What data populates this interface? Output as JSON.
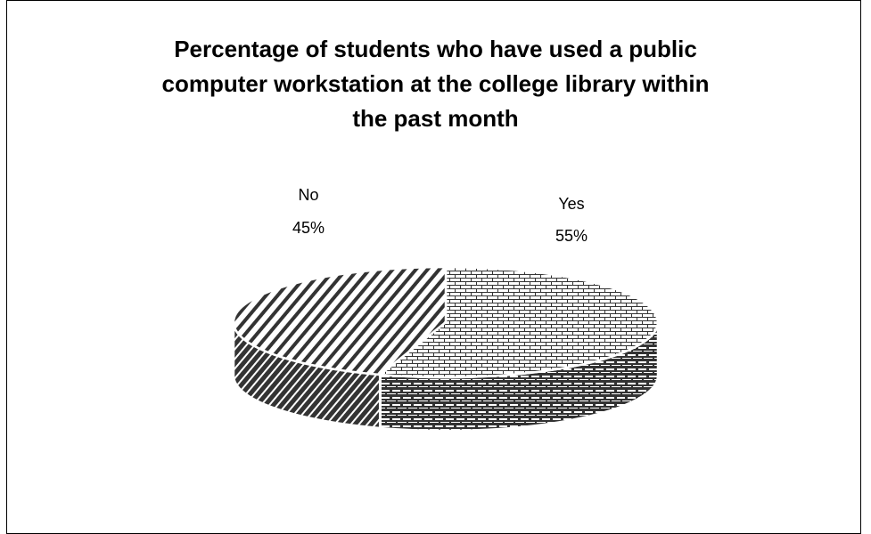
{
  "chart_data": {
    "type": "pie",
    "title_lines": [
      "Percentage of students who have used a public",
      "computer workstation at the college library within",
      "the past month"
    ],
    "slices": [
      {
        "name": "Yes",
        "value": 55,
        "label": "55%",
        "pattern": "brick"
      },
      {
        "name": "No",
        "value": 45,
        "label": "45%",
        "pattern": "diagonal"
      }
    ],
    "three_d": true,
    "legend": "none",
    "colors": {
      "pattern_ink": "#333333",
      "background": "#ffffff",
      "edge": "#ffffff"
    }
  }
}
